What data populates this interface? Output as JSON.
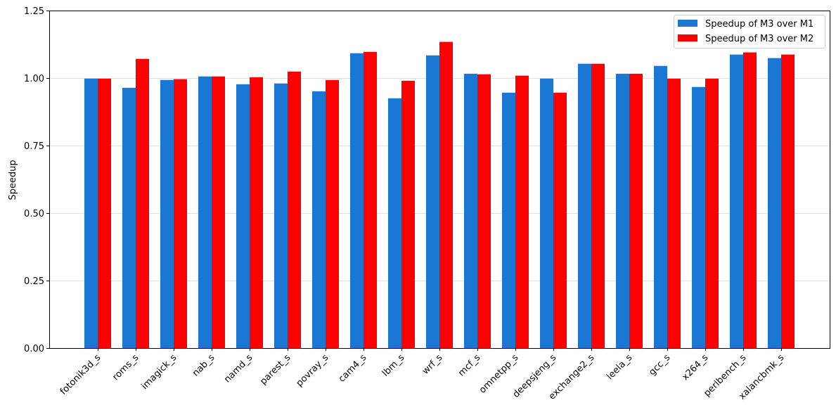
{
  "chart_data": {
    "type": "bar",
    "title": "",
    "xlabel": "",
    "ylabel": "Speedup",
    "ylim": [
      0,
      1.25
    ],
    "yticks": [
      "0.00",
      "0.25",
      "0.50",
      "0.75",
      "1.00",
      "1.25"
    ],
    "grid": "y",
    "legend_position": "top-right",
    "categories": [
      "fotonik3d_s",
      "roms_s",
      "imagick_s",
      "nab_s",
      "namd_s",
      "parest_s",
      "povray_s",
      "cam4_s",
      "lbm_s",
      "wrf_s",
      "mcf_s",
      "omnetpp_s",
      "deepsjeng_s",
      "exchange2_s",
      "leela_s",
      "gcc_s",
      "x264_s",
      "perlbench_s",
      "xalancbmk_s"
    ],
    "series": [
      {
        "name": "Speedup of M3 over M1",
        "color": "#1a77d4",
        "values": [
          0.998,
          0.964,
          0.993,
          1.006,
          0.977,
          0.98,
          0.951,
          1.092,
          0.925,
          1.084,
          1.016,
          0.946,
          0.998,
          1.053,
          1.016,
          1.045,
          0.967,
          1.087,
          1.074
        ]
      },
      {
        "name": "Speedup of M3 over M2",
        "color": "#ff0000",
        "values": [
          0.998,
          1.071,
          0.996,
          1.006,
          1.003,
          1.024,
          0.993,
          1.097,
          0.99,
          1.134,
          1.014,
          1.009,
          0.946,
          1.053,
          1.016,
          0.998,
          0.998,
          1.095,
          1.087
        ]
      }
    ]
  }
}
